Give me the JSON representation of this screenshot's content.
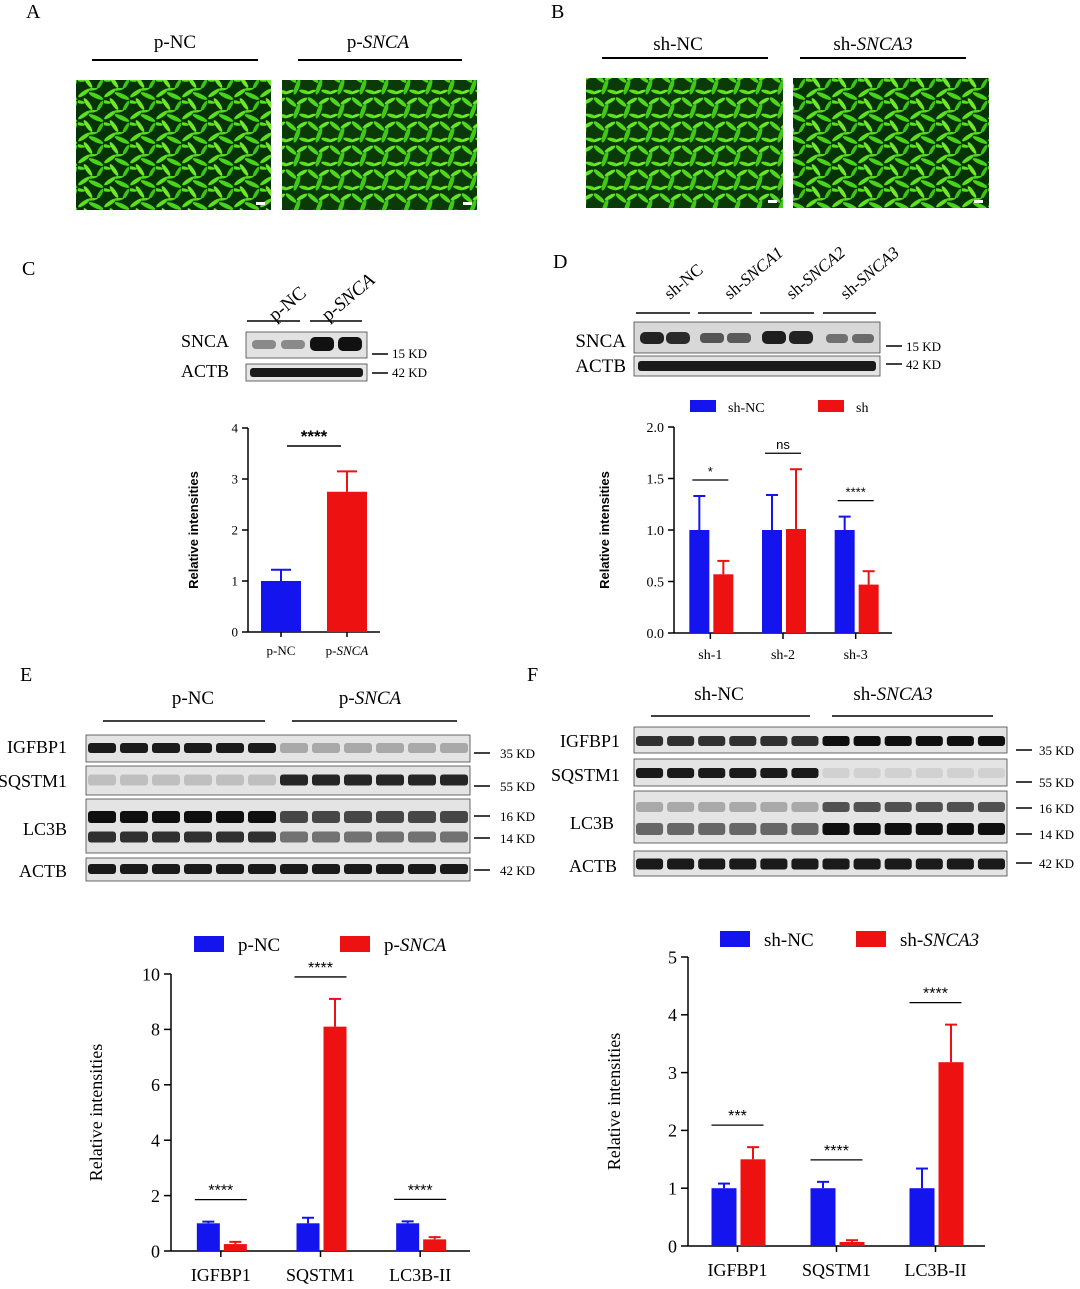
{
  "panels": {
    "A": {
      "letter": "A",
      "groups": [
        "p-NC",
        "p-SNCA"
      ],
      "images": [
        "p-NC fluorescence micrograph",
        "p-SNCA fluorescence micrograph"
      ]
    },
    "B": {
      "letter": "B",
      "groups": [
        "sh-NC",
        "sh-SNCA3"
      ],
      "images": [
        "sh-NC fluorescence micrograph",
        "sh-SNCA3 fluorescence micrograph"
      ]
    },
    "C": {
      "letter": "C",
      "blot": {
        "lane_labels": [
          "p-NC",
          "p-SNCA"
        ],
        "rows": [
          {
            "protein": "SNCA",
            "size": "15 KD"
          },
          {
            "protein": "ACTB",
            "size": "42 KD"
          }
        ]
      }
    },
    "D": {
      "letter": "D",
      "blot": {
        "lane_labels": [
          "sh-NC",
          "sh-SNCA1",
          "sh-SNCA2",
          "sh-SNCA3"
        ],
        "rows": [
          {
            "protein": "SNCA",
            "size": "15 KD"
          },
          {
            "protein": "ACTB",
            "size": "42 KD"
          }
        ]
      }
    },
    "E": {
      "letter": "E",
      "blot": {
        "group_labels": [
          "p-NC",
          "p-SNCA"
        ],
        "rows": [
          {
            "protein": "IGFBP1",
            "sizes": [
              "35 KD"
            ]
          },
          {
            "protein": "SQSTM1",
            "sizes": [
              "55 KD"
            ]
          },
          {
            "protein": "LC3B",
            "sizes": [
              "16 KD",
              "14 KD"
            ]
          },
          {
            "protein": "ACTB",
            "sizes": [
              "42 KD"
            ]
          }
        ]
      }
    },
    "F": {
      "letter": "F",
      "blot": {
        "group_labels": [
          "sh-NC",
          "sh-SNCA3"
        ],
        "rows": [
          {
            "protein": "IGFBP1",
            "sizes": [
              "35 KD"
            ]
          },
          {
            "protein": "SQSTM1",
            "sizes": [
              "55 KD"
            ]
          },
          {
            "protein": "LC3B",
            "sizes": [
              "16 KD",
              "14 KD"
            ]
          },
          {
            "protein": "ACTB",
            "sizes": [
              "42 KD"
            ]
          }
        ]
      }
    }
  },
  "chart_data": [
    {
      "panel": "C",
      "type": "bar",
      "categories": [
        "p-NC",
        "p-SNCA"
      ],
      "series": [
        {
          "values": [
            1.0,
            2.75
          ],
          "errors": [
            0.22,
            0.4
          ]
        }
      ],
      "bar_colors": [
        "#1414ee",
        "#ee1111"
      ],
      "ylabel": "Relative intensities",
      "ylim": [
        0,
        4
      ],
      "yticks": [
        0,
        1,
        2,
        3,
        4
      ],
      "significance": [
        {
          "from": 0,
          "to": 1,
          "label": "****"
        }
      ],
      "legend": "none"
    },
    {
      "panel": "D",
      "type": "bar",
      "categories": [
        "sh-1",
        "sh-2",
        "sh-3"
      ],
      "series": [
        {
          "name": "sh-NC",
          "color": "#1414ee",
          "values": [
            1.0,
            1.0,
            1.0
          ],
          "errors": [
            0.33,
            0.34,
            0.13
          ]
        },
        {
          "name": "sh",
          "color": "#ee1111",
          "values": [
            0.57,
            1.01,
            0.47
          ],
          "errors": [
            0.13,
            0.58,
            0.13
          ]
        }
      ],
      "ylabel": "Relative intensities",
      "ylim": [
        0,
        2.0
      ],
      "yticks": [
        "0.0",
        "0.5",
        "1.0",
        "1.5",
        "2.0"
      ],
      "significance": [
        {
          "category": 0,
          "label": "*"
        },
        {
          "category": 1,
          "label": "ns"
        },
        {
          "category": 2,
          "label": "****"
        }
      ],
      "legend": "top"
    },
    {
      "panel": "E",
      "type": "bar",
      "categories": [
        "IGFBP1",
        "SQSTM1",
        "LC3B-II"
      ],
      "series": [
        {
          "name": "p-NC",
          "color": "#1414ee",
          "values": [
            1.0,
            1.0,
            1.0
          ],
          "errors": [
            0.06,
            0.2,
            0.07
          ]
        },
        {
          "name": "p-SNCA",
          "color": "#ee1111",
          "values": [
            0.25,
            8.1,
            0.42
          ],
          "errors": [
            0.08,
            1.0,
            0.08
          ]
        }
      ],
      "ylabel": "Relative intensities",
      "ylim": [
        0,
        10
      ],
      "yticks": [
        0,
        2,
        4,
        6,
        8,
        10
      ],
      "significance": [
        {
          "category": 0,
          "label": "****"
        },
        {
          "category": 1,
          "label": "****"
        },
        {
          "category": 2,
          "label": "****"
        }
      ],
      "legend": "top"
    },
    {
      "panel": "F",
      "type": "bar",
      "categories": [
        "IGFBP1",
        "SQSTM1",
        "LC3B-II"
      ],
      "series": [
        {
          "name": "sh-NC",
          "color": "#1414ee",
          "values": [
            1.0,
            1.0,
            1.0
          ],
          "errors": [
            0.08,
            0.11,
            0.34
          ]
        },
        {
          "name": "sh-SNCA3",
          "color": "#ee1111",
          "values": [
            1.5,
            0.07,
            3.18
          ],
          "errors": [
            0.21,
            0.03,
            0.65
          ]
        }
      ],
      "ylabel": "Relative intensities",
      "ylim": [
        0,
        5
      ],
      "yticks": [
        0,
        1,
        2,
        3,
        4,
        5
      ],
      "significance": [
        {
          "category": 0,
          "label": "***"
        },
        {
          "category": 1,
          "label": "****"
        },
        {
          "category": 2,
          "label": "****"
        }
      ],
      "legend": "top"
    }
  ]
}
